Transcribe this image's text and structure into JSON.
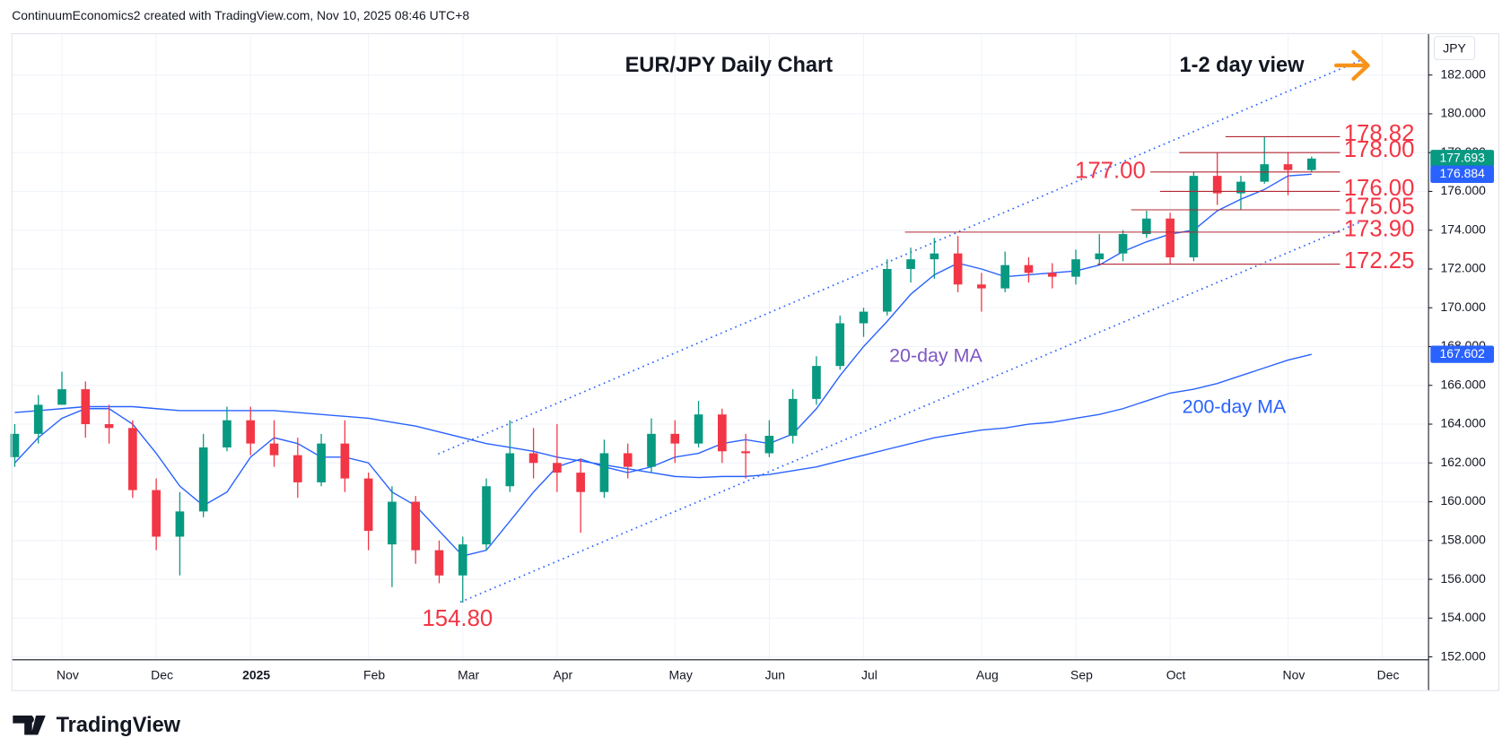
{
  "header": {
    "text": "ContinuumEconomics2 created with TradingView.com, Nov 10, 2025 08:46 UTC+8"
  },
  "footer": {
    "brand": "TradingView"
  },
  "chart_data": {
    "type": "candlestick",
    "title": "EUR/JPY Daily Chart",
    "subtitle": "1-2 day view",
    "currency": "JPY",
    "up_color": "#089981",
    "down_color": "#f23645",
    "grid": true,
    "categories": [
      null,
      null,
      "Nov",
      null,
      null,
      null,
      "Dec",
      null,
      null,
      null,
      "2025",
      null,
      null,
      null,
      null,
      "Feb",
      null,
      null,
      null,
      "Mar",
      null,
      null,
      null,
      "Apr",
      null,
      null,
      null,
      null,
      "May",
      null,
      null,
      null,
      "Jun",
      null,
      null,
      null,
      "Jul",
      null,
      null,
      null,
      null,
      "Aug",
      null,
      null,
      null,
      "Sep",
      null,
      null,
      null,
      "Oct",
      null,
      null,
      null,
      null,
      "Nov",
      null,
      null,
      null,
      "Dec",
      null
    ],
    "open": [
      162.3,
      163.5,
      165,
      165.8,
      164,
      163.8,
      160.6,
      158.2,
      159.5,
      162.8,
      164.2,
      163,
      162.4,
      161,
      163,
      161.2,
      157.8,
      160,
      157.5,
      156.2,
      157.8,
      160.8,
      162.5,
      162,
      161.5,
      160.5,
      162.5,
      161.8,
      163.5,
      163,
      164.5,
      162.6,
      162.5,
      163.4,
      165.3,
      167,
      169.2,
      169.8,
      172,
      172.5,
      172.8,
      171.2,
      171,
      172.2,
      171.8,
      171.6,
      172.5,
      172.8,
      173.8,
      174.6,
      172.6,
      176.8,
      175.9,
      176.5,
      177.4,
      177.1,
      null,
      null,
      null,
      null
    ],
    "high": [
      164,
      165.5,
      166.7,
      166.2,
      165,
      164.2,
      161.2,
      160.5,
      163.5,
      164.9,
      164.9,
      164.2,
      163.3,
      163.5,
      164.2,
      161.5,
      160.8,
      160.3,
      158,
      158.2,
      161.2,
      164.2,
      163.8,
      164,
      162.2,
      163.2,
      163,
      164.3,
      164.2,
      165.2,
      164.8,
      163.5,
      164.2,
      165.8,
      167.5,
      169.6,
      170,
      172.5,
      173.1,
      173.6,
      173.7,
      171.8,
      172.9,
      172.6,
      172.3,
      173,
      173.8,
      174,
      175,
      174.9,
      177,
      178,
      176.8,
      178.82,
      178,
      177.8,
      null,
      null,
      null,
      null
    ],
    "low": [
      161.8,
      163,
      165,
      163.3,
      163,
      160.2,
      157.5,
      156.2,
      159.2,
      162.6,
      162.4,
      161.8,
      160.2,
      160.8,
      160.5,
      157.5,
      155.6,
      156.8,
      155.8,
      154.8,
      157.5,
      160.5,
      161.2,
      160.5,
      158.4,
      160.2,
      161.2,
      161.5,
      162,
      162.8,
      162,
      161.2,
      162.3,
      163,
      165,
      166.8,
      168.5,
      169.6,
      171.3,
      171.5,
      170.8,
      169.8,
      170.8,
      171.3,
      171,
      171.2,
      172.2,
      172.4,
      173.6,
      172.25,
      172.4,
      175.3,
      175.05,
      176.4,
      175.8,
      177,
      null,
      null,
      null,
      null
    ],
    "close": [
      163.5,
      165,
      165.8,
      164,
      163.8,
      160.6,
      158.2,
      159.5,
      162.8,
      164.2,
      163,
      162.4,
      161,
      163,
      161.2,
      158.5,
      160,
      157.5,
      156.2,
      157.8,
      160.8,
      162.5,
      162,
      161.5,
      160.5,
      162.5,
      161.8,
      163.5,
      163,
      164.5,
      162.6,
      162.5,
      163.4,
      165.3,
      167,
      169.2,
      169.8,
      172,
      172.5,
      172.8,
      171.2,
      171,
      172.2,
      171.8,
      171.6,
      172.5,
      172.8,
      173.8,
      174.6,
      172.6,
      176.8,
      175.9,
      176.5,
      177.4,
      177.1,
      177.693,
      null,
      null,
      null,
      null
    ],
    "series": [
      {
        "name": "20-day MA",
        "color": "#2962ff",
        "label_color": "#7e57c2",
        "values": [
          162,
          163.3,
          164.3,
          164.8,
          164.8,
          164,
          162.5,
          160.8,
          159.8,
          160.5,
          162.3,
          163.3,
          163,
          162.3,
          162.3,
          162,
          160.5,
          159.8,
          158.5,
          157.2,
          157.5,
          159,
          160.5,
          161.8,
          162.2,
          161.8,
          161.5,
          161.8,
          162.3,
          162.5,
          163,
          163.2,
          163,
          163.5,
          164.8,
          166.5,
          168,
          169.3,
          170.7,
          171.7,
          172.3,
          172,
          171.6,
          171.7,
          171.8,
          171.9,
          172.2,
          172.9,
          173.4,
          173.8,
          174,
          175,
          175.6,
          176.1,
          176.8,
          176.884,
          null,
          null,
          null,
          null
        ]
      },
      {
        "name": "200-day MA",
        "color": "#2962ff",
        "label_color": "#2962ff",
        "values": [
          164.6,
          164.7,
          164.8,
          164.9,
          164.9,
          164.9,
          164.8,
          164.7,
          164.7,
          164.7,
          164.7,
          164.7,
          164.6,
          164.5,
          164.4,
          164.3,
          164.1,
          163.9,
          163.6,
          163.3,
          163,
          162.8,
          162.6,
          162.3,
          162.1,
          161.9,
          161.7,
          161.5,
          161.3,
          161.25,
          161.3,
          161.3,
          161.4,
          161.6,
          161.8,
          162.1,
          162.4,
          162.7,
          163,
          163.3,
          163.5,
          163.7,
          163.8,
          164,
          164.1,
          164.3,
          164.5,
          164.8,
          165.2,
          165.6,
          165.8,
          166.1,
          166.5,
          166.9,
          167.3,
          167.602,
          null,
          null,
          null,
          null
        ]
      }
    ],
    "levels": [
      {
        "value": 178.82,
        "label": "178.82"
      },
      {
        "value": 178,
        "label": "178.00"
      },
      {
        "value": 177,
        "label": "177.00"
      },
      {
        "value": 176,
        "label": "176.00"
      },
      {
        "value": 175.05,
        "label": "175.05"
      },
      {
        "value": 173.9,
        "label": "173.90"
      },
      {
        "value": 172.25,
        "label": "172.25"
      }
    ],
    "low_label": {
      "value": 154.8,
      "label": "154.80"
    },
    "level_color": "#f23645",
    "ylim": [
      151.6,
      184
    ],
    "yticks": [
      {
        "value": 152,
        "label": "152.000"
      },
      {
        "value": 154,
        "label": "154.000"
      },
      {
        "value": 156,
        "label": "156.000"
      },
      {
        "value": 158,
        "label": "158.000"
      },
      {
        "value": 160,
        "label": "160.000"
      },
      {
        "value": 162,
        "label": "162.000"
      },
      {
        "value": 164,
        "label": "164.000"
      },
      {
        "value": 166,
        "label": "166.000"
      },
      {
        "value": 168,
        "label": "168.000"
      },
      {
        "value": 170,
        "label": "170.000"
      },
      {
        "value": 172,
        "label": "172.000"
      },
      {
        "value": 174,
        "label": "174.000"
      },
      {
        "value": 176,
        "label": "176.000"
      },
      {
        "value": 178,
        "label": "178.000"
      },
      {
        "value": 180,
        "label": "180.000"
      },
      {
        "value": 182,
        "label": "182.000"
      }
    ]
  }
}
